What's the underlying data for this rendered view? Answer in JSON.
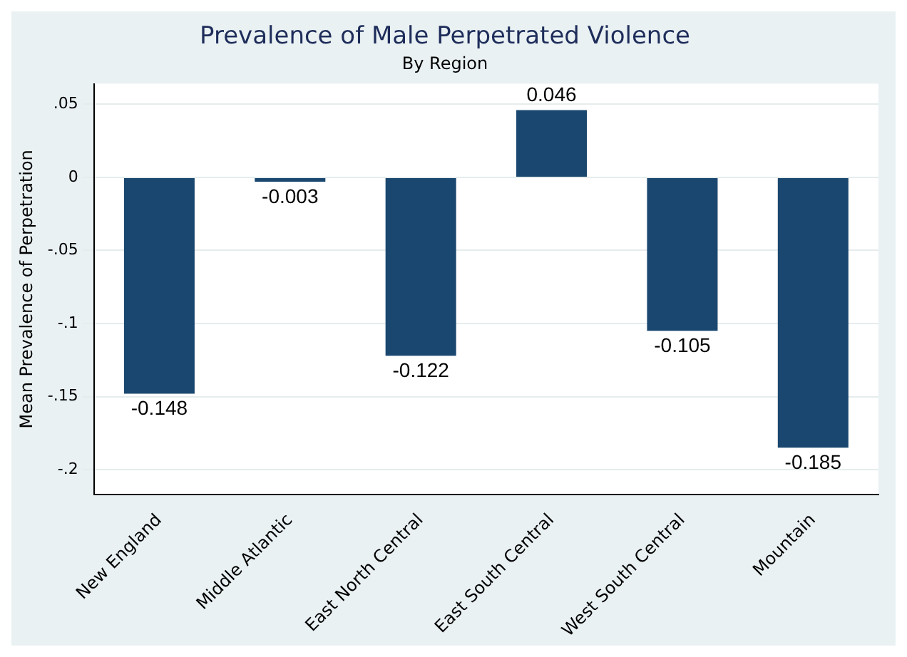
{
  "chart_data": {
    "type": "bar",
    "title": "Prevalence of Male Perpetrated Violence",
    "subtitle": "By Region",
    "ylabel": "Mean Prevalence of Perpetration",
    "categories": [
      "New England",
      "Middle Atlantic",
      "East North Central",
      "East South Central",
      "West South Central",
      "Mountain"
    ],
    "values": [
      -0.148,
      -0.003,
      -0.122,
      0.046,
      -0.105,
      -0.185
    ],
    "color": "#1a476f",
    "ylim": [
      -0.217,
      0.064
    ],
    "yticks": [
      {
        "value": 0.05,
        "label": ".05"
      },
      0,
      {
        "value": -0.05,
        "label": "-.05"
      },
      {
        "value": -0.1,
        "label": "-.1"
      },
      {
        "value": -0.15,
        "label": "-.15"
      },
      {
        "value": -0.2,
        "label": "-.2"
      }
    ],
    "grid": "y",
    "data_labels": true
  }
}
